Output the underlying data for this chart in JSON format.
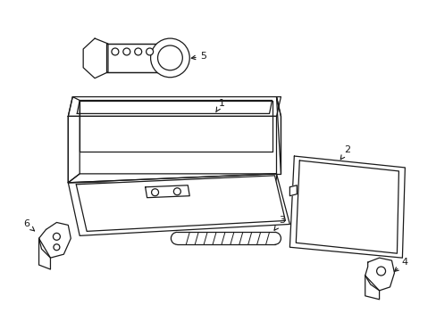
{
  "bg_color": "#ffffff",
  "line_color": "#1a1a1a",
  "fig_width": 4.89,
  "fig_height": 3.6,
  "dpi": 100,
  "lw": 0.9
}
